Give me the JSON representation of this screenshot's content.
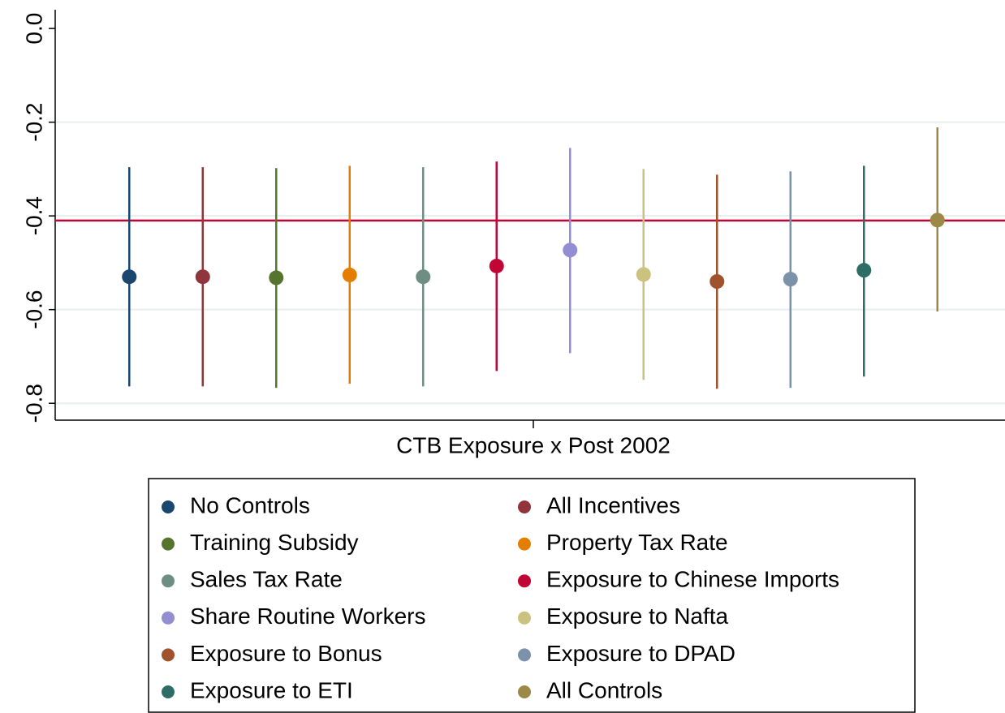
{
  "chart_data": {
    "type": "errorbar",
    "categories": [
      "CTB Exposure x Post 2002"
    ],
    "ylim": [
      -0.836,
      0.04
    ],
    "yticks": [
      {
        "value": 0,
        "label": "0.0"
      },
      -0.2,
      -0.4,
      -0.6,
      -0.8
    ],
    "grid": true,
    "hline": {
      "value": -0.41,
      "color": "#c10534"
    },
    "legend": "bottom",
    "series": [
      {
        "name": "No Controls",
        "color": "#1a476f",
        "values": [
          -0.53
        ],
        "lower": [
          -0.764
        ],
        "upper": [
          -0.296
        ]
      },
      {
        "name": "All Incentives",
        "color": "#90353b",
        "values": [
          -0.53
        ],
        "lower": [
          -0.764
        ],
        "upper": [
          -0.296
        ]
      },
      {
        "name": "Training Subsidy",
        "color": "#55752f",
        "values": [
          -0.532
        ],
        "lower": [
          -0.767
        ],
        "upper": [
          -0.298
        ]
      },
      {
        "name": "Property Tax Rate",
        "color": "#e37e00",
        "values": [
          -0.526
        ],
        "lower": [
          -0.758
        ],
        "upper": [
          -0.293
        ]
      },
      {
        "name": "Sales Tax Rate",
        "color": "#6e8e84",
        "values": [
          -0.53
        ],
        "lower": [
          -0.764
        ],
        "upper": [
          -0.296
        ]
      },
      {
        "name": "Exposure to Chinese Imports",
        "color": "#c10534",
        "values": [
          -0.507
        ],
        "lower": [
          -0.731
        ],
        "upper": [
          -0.284
        ]
      },
      {
        "name": "Share Routine Workers",
        "color": "#938dd2",
        "values": [
          -0.473
        ],
        "lower": [
          -0.693
        ],
        "upper": [
          -0.255
        ]
      },
      {
        "name": "Exposure to Nafta",
        "color": "#cac27e",
        "values": [
          -0.525
        ],
        "lower": [
          -0.75
        ],
        "upper": [
          -0.3
        ]
      },
      {
        "name": "Exposure to Bonus",
        "color": "#a0522d",
        "values": [
          -0.54
        ],
        "lower": [
          -0.769
        ],
        "upper": [
          -0.312
        ]
      },
      {
        "name": "Exposure to DPAD",
        "color": "#7b92a8",
        "values": [
          -0.535
        ],
        "lower": [
          -0.767
        ],
        "upper": [
          -0.305
        ]
      },
      {
        "name": "Exposure to ETI",
        "color": "#2d6d66",
        "values": [
          -0.516
        ],
        "lower": [
          -0.743
        ],
        "upper": [
          -0.293
        ]
      },
      {
        "name": "All Controls",
        "color": "#9c8847",
        "values": [
          -0.409
        ],
        "lower": [
          -0.604
        ],
        "upper": [
          -0.211
        ]
      }
    ]
  }
}
